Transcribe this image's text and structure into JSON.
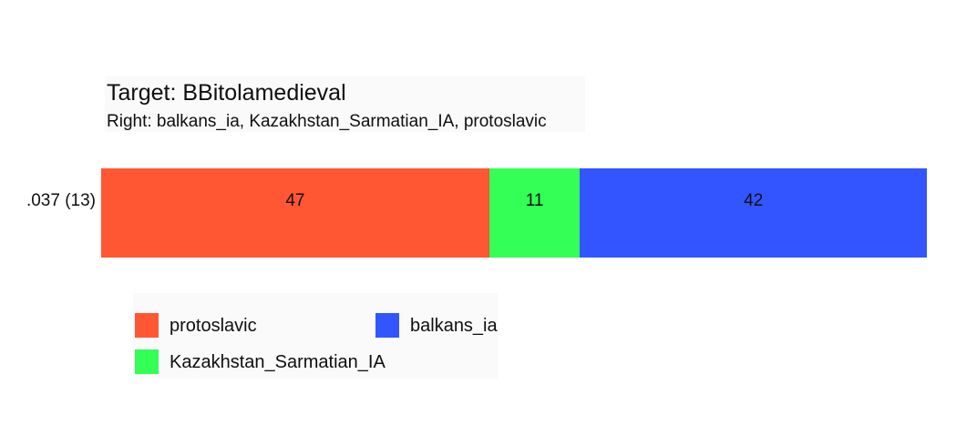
{
  "chart_data": {
    "type": "bar",
    "orientation": "horizontal-stacked",
    "title": "Target: BBitolamedieval",
    "subtitle": "Right: balkans_ia, Kazakhstan_Sarmatian_IA, protoslavic",
    "xlim": [
      0,
      100
    ],
    "grid": false,
    "legend_position": "bottom",
    "rows": [
      {
        "label": ".037 (13)",
        "segments": [
          {
            "name": "protoslavic",
            "value": 47,
            "color": "#FF5733"
          },
          {
            "name": "Kazakhstan_Sarmatian_IA",
            "value": 11,
            "color": "#33FF57"
          },
          {
            "name": "balkans_ia",
            "value": 42,
            "color": "#3355FF"
          }
        ]
      }
    ],
    "legend": [
      {
        "label": "protoslavic",
        "color": "#FF5733"
      },
      {
        "label": "balkans_ia",
        "color": "#3355FF"
      },
      {
        "label": "Kazakhstan_Sarmatian_IA",
        "color": "#33FF57"
      }
    ]
  }
}
